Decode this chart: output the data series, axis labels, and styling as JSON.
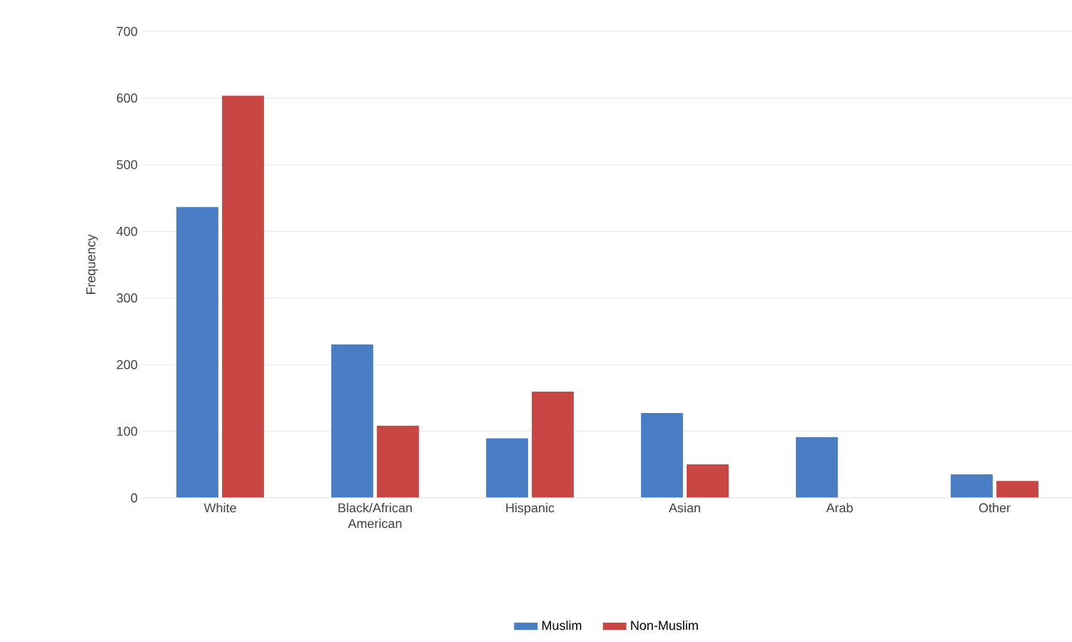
{
  "chart_data": {
    "type": "bar",
    "ylabel": "Frequency",
    "categories": [
      "White",
      "Black/African American",
      "Hispanic",
      "Asian",
      "Arab",
      "Other"
    ],
    "series": [
      {
        "name": "Muslim",
        "color": "#4a7ec4",
        "values": [
          437,
          231,
          90,
          128,
          92,
          36
        ]
      },
      {
        "name": "Non-Muslim",
        "color": "#c84644",
        "values": [
          604,
          109,
          160,
          51,
          null,
          26
        ]
      }
    ],
    "ylim": [
      0,
      700
    ],
    "yticks": [
      0,
      100,
      200,
      300,
      400,
      500,
      600,
      700
    ],
    "grid": "y",
    "legend": "bottom"
  }
}
